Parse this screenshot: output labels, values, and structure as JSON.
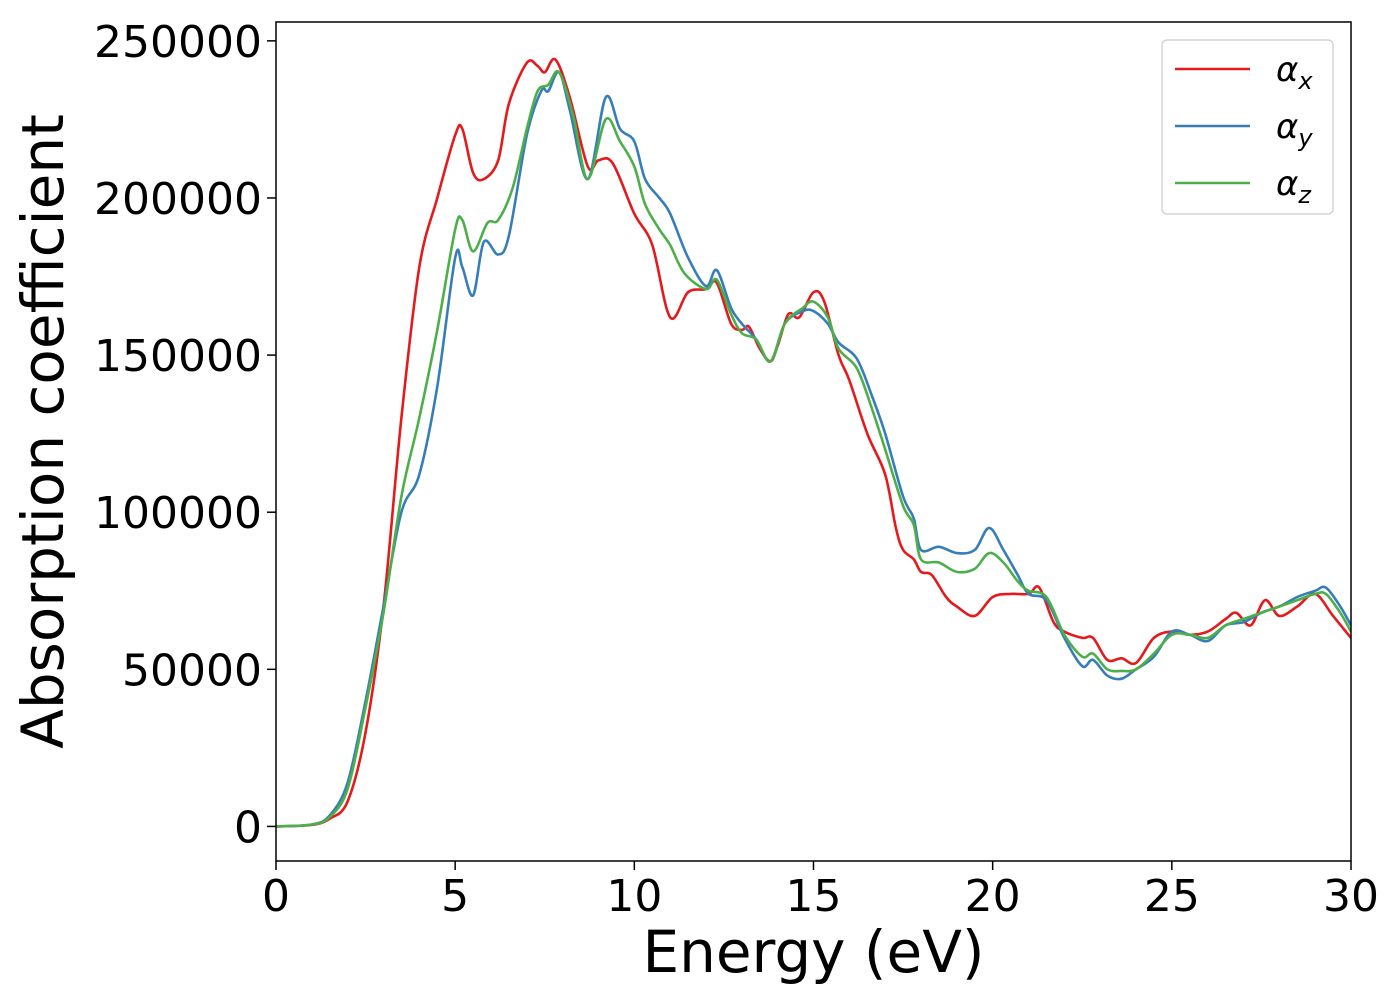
{
  "chart_data": {
    "type": "line",
    "title": "",
    "xlabel": "Energy (eV)",
    "ylabel": "Absorption coefficient",
    "xlim": [
      0,
      30
    ],
    "ylim": [
      -11000,
      256000
    ],
    "x_ticks": [
      0,
      5,
      10,
      15,
      20,
      25,
      30
    ],
    "y_ticks": [
      0,
      50000,
      100000,
      150000,
      200000,
      250000
    ],
    "x_tick_labels": [
      "0",
      "5",
      "10",
      "15",
      "20",
      "25",
      "30"
    ],
    "y_tick_labels": [
      "0",
      "50000",
      "100000",
      "150000",
      "200000",
      "250000"
    ],
    "grid": false,
    "legend_position": "top-right",
    "series": [
      {
        "name": "α",
        "subscript": "x",
        "color": "#e41a1c",
        "points": [
          [
            0,
            0
          ],
          [
            1,
            500
          ],
          [
            1.5,
            2500
          ],
          [
            2,
            8000
          ],
          [
            2.5,
            30000
          ],
          [
            3,
            70000
          ],
          [
            3.5,
            130000
          ],
          [
            4,
            178000
          ],
          [
            4.5,
            200000
          ],
          [
            5,
            220000
          ],
          [
            5.2,
            222000
          ],
          [
            5.5,
            208000
          ],
          [
            5.8,
            206000
          ],
          [
            6.2,
            212000
          ],
          [
            6.5,
            230000
          ],
          [
            7,
            243000
          ],
          [
            7.3,
            242000
          ],
          [
            7.5,
            240000
          ],
          [
            7.8,
            244000
          ],
          [
            8.2,
            232000
          ],
          [
            8.7,
            210000
          ],
          [
            9,
            212000
          ],
          [
            9.4,
            211000
          ],
          [
            10,
            195000
          ],
          [
            10.5,
            185000
          ],
          [
            11,
            162000
          ],
          [
            11.5,
            170000
          ],
          [
            12,
            171000
          ],
          [
            12.3,
            173000
          ],
          [
            12.7,
            160000
          ],
          [
            13,
            158000
          ],
          [
            13.2,
            159000
          ],
          [
            13.5,
            152000
          ],
          [
            13.8,
            148000
          ],
          [
            14,
            153000
          ],
          [
            14.3,
            163000
          ],
          [
            14.6,
            162000
          ],
          [
            15,
            170000
          ],
          [
            15.3,
            167000
          ],
          [
            15.7,
            150000
          ],
          [
            16,
            142000
          ],
          [
            16.5,
            125000
          ],
          [
            17,
            112000
          ],
          [
            17.3,
            95000
          ],
          [
            17.5,
            88000
          ],
          [
            17.8,
            85000
          ],
          [
            18,
            81000
          ],
          [
            18.3,
            80000
          ],
          [
            18.7,
            73000
          ],
          [
            19,
            70000
          ],
          [
            19.5,
            67000
          ],
          [
            20,
            73000
          ],
          [
            20.5,
            74000
          ],
          [
            21,
            74000
          ],
          [
            21.3,
            76000
          ],
          [
            21.7,
            65000
          ],
          [
            22,
            62000
          ],
          [
            22.5,
            60000
          ],
          [
            22.8,
            60000
          ],
          [
            23.2,
            53000
          ],
          [
            23.6,
            53500
          ],
          [
            24,
            52000
          ],
          [
            24.5,
            60000
          ],
          [
            25,
            62000
          ],
          [
            25.5,
            61000
          ],
          [
            26,
            62000
          ],
          [
            26.5,
            66000
          ],
          [
            26.8,
            68000
          ],
          [
            27.2,
            64000
          ],
          [
            27.6,
            72000
          ],
          [
            28,
            67000
          ],
          [
            28.5,
            70000
          ],
          [
            29,
            74000
          ],
          [
            29.5,
            67000
          ],
          [
            30,
            60000
          ]
        ]
      },
      {
        "name": "α",
        "subscript": "y",
        "color": "#377eb8",
        "points": [
          [
            0,
            0
          ],
          [
            1,
            600
          ],
          [
            1.5,
            3500
          ],
          [
            2,
            14000
          ],
          [
            2.5,
            40000
          ],
          [
            3,
            70000
          ],
          [
            3.5,
            100000
          ],
          [
            4,
            112000
          ],
          [
            4.5,
            140000
          ],
          [
            5,
            181000
          ],
          [
            5.2,
            178000
          ],
          [
            5.5,
            169000
          ],
          [
            5.8,
            186000
          ],
          [
            6.2,
            182000
          ],
          [
            6.5,
            188000
          ],
          [
            7,
            220000
          ],
          [
            7.4,
            234000
          ],
          [
            7.6,
            234000
          ],
          [
            7.9,
            240000
          ],
          [
            8.2,
            228000
          ],
          [
            8.7,
            206000
          ],
          [
            9.2,
            232000
          ],
          [
            9.6,
            222000
          ],
          [
            10,
            218000
          ],
          [
            10.3,
            206000
          ],
          [
            10.7,
            200000
          ],
          [
            11,
            195000
          ],
          [
            11.5,
            181000
          ],
          [
            12,
            172000
          ],
          [
            12.3,
            177000
          ],
          [
            12.7,
            165000
          ],
          [
            13,
            160000
          ],
          [
            13.4,
            155000
          ],
          [
            13.8,
            148000
          ],
          [
            14.2,
            160000
          ],
          [
            14.7,
            164000
          ],
          [
            15,
            164000
          ],
          [
            15.4,
            160000
          ],
          [
            15.7,
            154000
          ],
          [
            16.2,
            149000
          ],
          [
            16.6,
            138000
          ],
          [
            17,
            125000
          ],
          [
            17.5,
            105000
          ],
          [
            17.8,
            98000
          ],
          [
            18,
            88000
          ],
          [
            18.5,
            89000
          ],
          [
            19,
            87000
          ],
          [
            19.5,
            88000
          ],
          [
            19.9,
            95000
          ],
          [
            20.3,
            88000
          ],
          [
            20.7,
            80000
          ],
          [
            21,
            74000
          ],
          [
            21.5,
            72000
          ],
          [
            22,
            60000
          ],
          [
            22.5,
            51000
          ],
          [
            22.8,
            53000
          ],
          [
            23.2,
            48000
          ],
          [
            23.6,
            47000
          ],
          [
            24,
            50000
          ],
          [
            24.5,
            54000
          ],
          [
            25,
            62000
          ],
          [
            25.5,
            61000
          ],
          [
            26,
            59000
          ],
          [
            26.5,
            64000
          ],
          [
            27,
            65000
          ],
          [
            27.5,
            68000
          ],
          [
            28,
            70000
          ],
          [
            28.5,
            73000
          ],
          [
            29,
            75000
          ],
          [
            29.3,
            76000
          ],
          [
            29.7,
            70000
          ],
          [
            30,
            64000
          ]
        ]
      },
      {
        "name": "α",
        "subscript": "z",
        "color": "#4daf4a",
        "points": [
          [
            0,
            0
          ],
          [
            1,
            600
          ],
          [
            1.5,
            3000
          ],
          [
            2,
            12000
          ],
          [
            2.5,
            38000
          ],
          [
            3,
            68000
          ],
          [
            3.5,
            105000
          ],
          [
            4,
            130000
          ],
          [
            4.5,
            158000
          ],
          [
            5,
            190000
          ],
          [
            5.2,
            193000
          ],
          [
            5.5,
            183000
          ],
          [
            5.9,
            192000
          ],
          [
            6.2,
            193000
          ],
          [
            6.6,
            203000
          ],
          [
            7,
            222000
          ],
          [
            7.3,
            234000
          ],
          [
            7.6,
            236000
          ],
          [
            7.9,
            240000
          ],
          [
            8.3,
            226000
          ],
          [
            8.7,
            206000
          ],
          [
            9.2,
            225000
          ],
          [
            9.6,
            218000
          ],
          [
            10,
            210000
          ],
          [
            10.3,
            198000
          ],
          [
            10.7,
            190000
          ],
          [
            11,
            185000
          ],
          [
            11.4,
            176000
          ],
          [
            12,
            171000
          ],
          [
            12.3,
            174000
          ],
          [
            12.7,
            163000
          ],
          [
            13,
            157000
          ],
          [
            13.4,
            155000
          ],
          [
            13.8,
            148000
          ],
          [
            14.2,
            160000
          ],
          [
            14.7,
            165000
          ],
          [
            15,
            167000
          ],
          [
            15.4,
            162000
          ],
          [
            15.7,
            152000
          ],
          [
            16.2,
            146000
          ],
          [
            16.6,
            134000
          ],
          [
            17,
            120000
          ],
          [
            17.5,
            102000
          ],
          [
            17.8,
            96000
          ],
          [
            18,
            85000
          ],
          [
            18.5,
            84000
          ],
          [
            19,
            81000
          ],
          [
            19.5,
            82000
          ],
          [
            19.9,
            87000
          ],
          [
            20.3,
            84000
          ],
          [
            20.7,
            78000
          ],
          [
            21,
            75000
          ],
          [
            21.5,
            73000
          ],
          [
            22,
            61000
          ],
          [
            22.5,
            54000
          ],
          [
            22.8,
            55000
          ],
          [
            23.2,
            50000
          ],
          [
            23.6,
            49500
          ],
          [
            24,
            50000
          ],
          [
            24.5,
            55000
          ],
          [
            25,
            61000
          ],
          [
            25.5,
            61000
          ],
          [
            26,
            60000
          ],
          [
            26.5,
            64000
          ],
          [
            27,
            66000
          ],
          [
            27.5,
            68000
          ],
          [
            28,
            70000
          ],
          [
            28.5,
            72000
          ],
          [
            29,
            74000
          ],
          [
            29.3,
            74000
          ],
          [
            29.7,
            68000
          ],
          [
            30,
            62000
          ]
        ]
      }
    ]
  }
}
